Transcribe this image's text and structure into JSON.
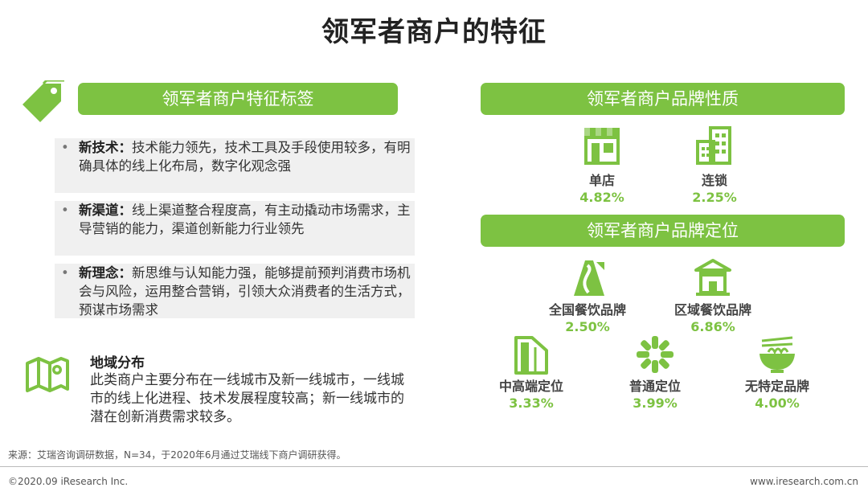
{
  "title": "领军者商户的特征",
  "left": {
    "header": "领军者商户特征标签",
    "bullets": [
      {
        "term": "新技术：",
        "text": "技术能力领先，技术工具及手段使用较多，有明确具体的线上化布局，数字化观念强"
      },
      {
        "term": "新渠道：",
        "text": "线上渠道整合程度高，有主动撬动市场需求，主导营销的能力，渠道创新能力行业领先"
      },
      {
        "term": "新理念：",
        "text": "新思维与认知能力强，能够提前预判消费市场机会与风险，运用整合营销，引领大众消费者的生活方式，预谋市场需求"
      }
    ],
    "region": {
      "title": "地域分布",
      "text": "此类商户主要分布在一线城市及新一线城市，一线城市的线上化进程、技术发展程度较高；新一线城市的潜在创新消费需求较多。"
    }
  },
  "right": {
    "nature": {
      "header": "领军者商户品牌性质",
      "items": [
        {
          "label": "单店",
          "value": "4.82%",
          "icon": "storefront-icon"
        },
        {
          "label": "连锁",
          "value": "2.25%",
          "icon": "building-icon"
        }
      ]
    },
    "positioning": {
      "header": "领军者商户品牌定位",
      "items": [
        {
          "label": "全国餐饮品牌",
          "value": "2.50%",
          "icon": "road-icon"
        },
        {
          "label": "区域餐饮品牌",
          "value": "6.86%",
          "icon": "pavilion-icon"
        },
        {
          "label": "中高端定位",
          "value": "3.33%",
          "icon": "skyscraper-icon"
        },
        {
          "label": "普通定位",
          "value": "3.99%",
          "icon": "burst-icon"
        },
        {
          "label": "无特定品牌",
          "value": "4.00%",
          "icon": "noodle-bowl-icon"
        }
      ]
    }
  },
  "footer": {
    "source": "来源：艾瑞咨询调研数据，N=34，于2020年6月通过艾瑞线下商户调研获得。",
    "copyright": "©2020.09 iResearch Inc.",
    "website": "www.iresearch.com.cn"
  },
  "colors": {
    "accent": "#7dc242",
    "panel": "#f0f0f0"
  }
}
